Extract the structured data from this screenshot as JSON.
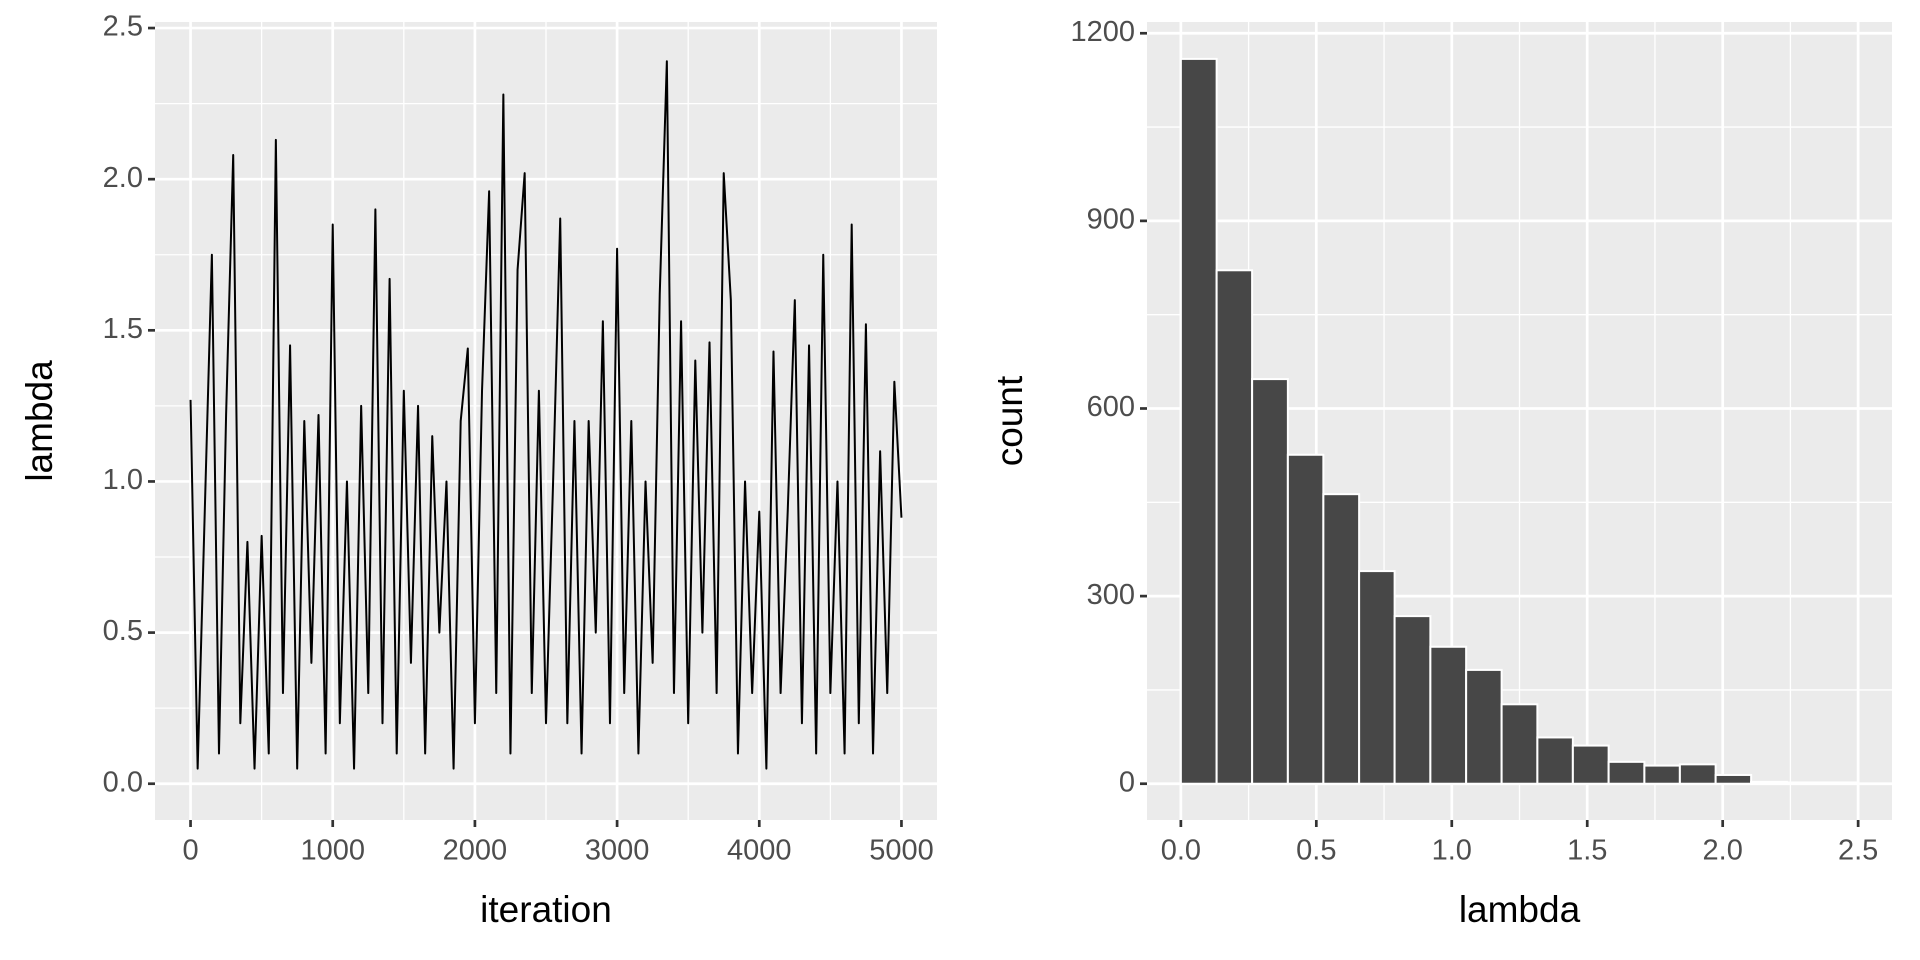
{
  "chart_data": [
    {
      "type": "line",
      "xlabel": "iteration",
      "ylabel": "lambda",
      "x": [
        0,
        50,
        100,
        150,
        200,
        250,
        300,
        350,
        400,
        450,
        500,
        550,
        600,
        650,
        700,
        750,
        800,
        850,
        900,
        950,
        1000,
        1050,
        1100,
        1150,
        1200,
        1250,
        1300,
        1350,
        1400,
        1450,
        1500,
        1550,
        1600,
        1650,
        1700,
        1750,
        1800,
        1850,
        1900,
        1950,
        2000,
        2050,
        2100,
        2150,
        2200,
        2250,
        2300,
        2350,
        2400,
        2450,
        2500,
        2550,
        2600,
        2650,
        2700,
        2750,
        2800,
        2850,
        2900,
        2950,
        3000,
        3050,
        3100,
        3150,
        3200,
        3250,
        3300,
        3350,
        3400,
        3450,
        3500,
        3550,
        3600,
        3650,
        3700,
        3750,
        3800,
        3850,
        3900,
        3950,
        4000,
        4050,
        4100,
        4150,
        4200,
        4250,
        4300,
        4350,
        4400,
        4450,
        4500,
        4550,
        4600,
        4650,
        4700,
        4750,
        4800,
        4850,
        4900,
        4950,
        5000
      ],
      "series": [
        {
          "name": "lambda",
          "color": "#000000",
          "values": [
            1.27,
            0.05,
            0.9,
            1.75,
            0.1,
            1.22,
            2.08,
            0.2,
            0.8,
            0.05,
            0.82,
            0.1,
            2.13,
            0.3,
            1.45,
            0.05,
            1.2,
            0.4,
            1.22,
            0.1,
            1.85,
            0.2,
            1.0,
            0.05,
            1.25,
            0.3,
            1.9,
            0.2,
            1.67,
            0.1,
            1.3,
            0.4,
            1.25,
            0.1,
            1.15,
            0.5,
            1.0,
            0.05,
            1.2,
            1.44,
            0.2,
            1.3,
            1.96,
            0.3,
            2.28,
            0.1,
            1.7,
            2.02,
            0.3,
            1.3,
            0.2,
            1.0,
            1.87,
            0.2,
            1.2,
            0.1,
            1.2,
            0.5,
            1.53,
            0.2,
            1.77,
            0.3,
            1.2,
            0.1,
            1.0,
            0.4,
            1.62,
            2.39,
            0.3,
            1.53,
            0.2,
            1.4,
            0.5,
            1.46,
            0.3,
            2.02,
            1.6,
            0.1,
            1.0,
            0.3,
            0.9,
            0.05,
            1.43,
            0.3,
            0.9,
            1.6,
            0.2,
            1.45,
            0.1,
            1.75,
            0.3,
            1.0,
            0.1,
            1.85,
            0.2,
            1.52,
            0.1,
            1.1,
            0.3,
            1.33,
            0.88
          ]
        }
      ],
      "xlim": [
        -250,
        5250
      ],
      "xticks": [
        0,
        1000,
        2000,
        3000,
        4000,
        5000
      ],
      "ylim": [
        -0.12,
        2.52
      ],
      "yticks": [
        {
          "value": 0,
          "label": "0.0"
        },
        0.5,
        {
          "value": 1,
          "label": "1.0"
        },
        1.5,
        {
          "value": 2,
          "label": "2.0"
        },
        2.5
      ],
      "grid": true
    },
    {
      "type": "histogram",
      "xlabel": "lambda",
      "ylabel": "count",
      "color": "#474747",
      "bins": [
        0,
        0.132,
        0.263,
        0.395,
        0.526,
        0.658,
        0.789,
        0.921,
        1.053,
        1.184,
        1.316,
        1.447,
        1.579,
        1.711,
        1.842,
        1.974,
        2.105,
        2.237,
        2.368,
        2.5
      ],
      "values": [
        1159,
        821,
        647,
        526,
        463,
        340,
        268,
        219,
        182,
        127,
        74,
        61,
        35,
        29,
        31,
        14,
        3,
        2,
        2
      ],
      "xlim": [
        -0.125,
        2.625
      ],
      "xticks": [
        {
          "value": 0,
          "label": "0.0"
        },
        0.5,
        {
          "value": 1,
          "label": "1.0"
        },
        1.5,
        {
          "value": 2,
          "label": "2.0"
        },
        2.5
      ],
      "ylim": [
        -58,
        1218
      ],
      "yticks": [
        0,
        300,
        600,
        900,
        1200
      ],
      "grid": true
    }
  ]
}
